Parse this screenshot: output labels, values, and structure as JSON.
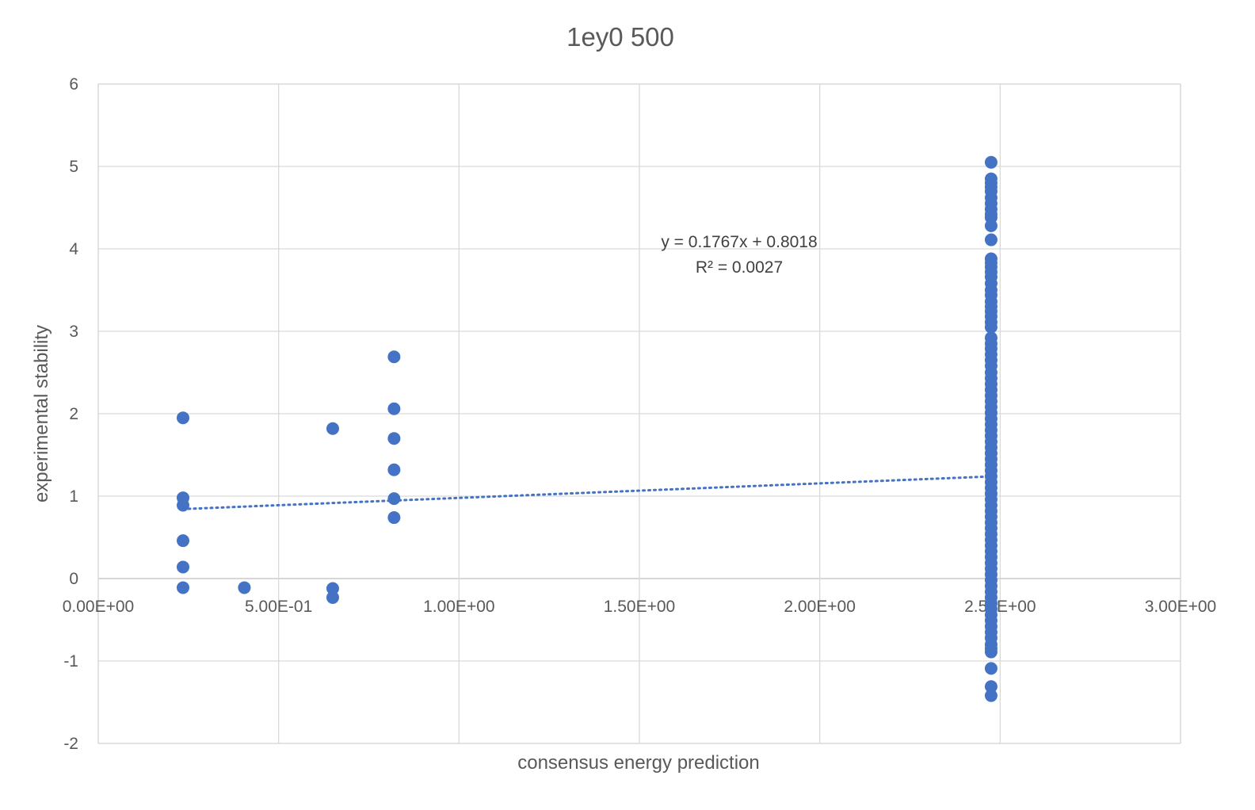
{
  "chart_data": {
    "type": "scatter",
    "title": "1ey0 500",
    "xlabel": "consensus energy prediction",
    "ylabel": "experimental stability",
    "xlim": [
      0,
      3
    ],
    "ylim": [
      -2,
      6
    ],
    "x_ticks": [
      "0.00E+00",
      "5.00E-01",
      "1.00E+00",
      "1.50E+00",
      "2.00E+00",
      "2.50E+00",
      "3.00E+00"
    ],
    "y_ticks": [
      "-2",
      "-1",
      "0",
      "1",
      "2",
      "3",
      "4",
      "5",
      "6"
    ],
    "grid": true,
    "legend": "none",
    "color": "#4472c4",
    "series": [
      {
        "points": [
          [
            0.235,
            1.95
          ],
          [
            0.235,
            0.98
          ],
          [
            0.235,
            0.89
          ],
          [
            0.235,
            0.46
          ],
          [
            0.235,
            0.14
          ],
          [
            0.235,
            -0.11
          ],
          [
            0.405,
            -0.11
          ],
          [
            0.65,
            1.82
          ],
          [
            0.65,
            -0.12
          ],
          [
            0.65,
            -0.23
          ],
          [
            0.82,
            2.69
          ],
          [
            0.82,
            2.06
          ],
          [
            0.82,
            1.7
          ],
          [
            0.82,
            1.32
          ],
          [
            0.82,
            0.97
          ],
          [
            0.82,
            0.74
          ],
          [
            2.475,
            5.05
          ],
          [
            2.475,
            4.85
          ],
          [
            2.475,
            4.8
          ],
          [
            2.475,
            4.75
          ],
          [
            2.475,
            4.7
          ],
          [
            2.475,
            4.62
          ],
          [
            2.475,
            4.55
          ],
          [
            2.475,
            4.48
          ],
          [
            2.475,
            4.42
          ],
          [
            2.475,
            4.38
          ],
          [
            2.475,
            4.28
          ],
          [
            2.475,
            4.11
          ],
          [
            2.475,
            3.88
          ],
          [
            2.475,
            3.83
          ],
          [
            2.475,
            3.78
          ],
          [
            2.475,
            3.72
          ],
          [
            2.475,
            3.66
          ],
          [
            2.475,
            3.58
          ],
          [
            2.475,
            3.5
          ],
          [
            2.475,
            3.44
          ],
          [
            2.475,
            3.36
          ],
          [
            2.475,
            3.3
          ],
          [
            2.475,
            3.24
          ],
          [
            2.475,
            3.18
          ],
          [
            2.475,
            3.11
          ],
          [
            2.475,
            3.05
          ],
          [
            2.475,
            2.92
          ],
          [
            2.475,
            2.85
          ],
          [
            2.475,
            2.79
          ],
          [
            2.475,
            2.72
          ],
          [
            2.475,
            2.65
          ],
          [
            2.475,
            2.58
          ],
          [
            2.475,
            2.5
          ],
          [
            2.475,
            2.43
          ],
          [
            2.475,
            2.36
          ],
          [
            2.475,
            2.29
          ],
          [
            2.475,
            2.22
          ],
          [
            2.475,
            2.15
          ],
          [
            2.475,
            2.08
          ],
          [
            2.475,
            2.01
          ],
          [
            2.475,
            1.94
          ],
          [
            2.475,
            1.87
          ],
          [
            2.475,
            1.8
          ],
          [
            2.475,
            1.73
          ],
          [
            2.475,
            1.66
          ],
          [
            2.475,
            1.59
          ],
          [
            2.475,
            1.52
          ],
          [
            2.475,
            1.45
          ],
          [
            2.475,
            1.38
          ],
          [
            2.475,
            1.31
          ],
          [
            2.475,
            1.24
          ],
          [
            2.475,
            1.17
          ],
          [
            2.475,
            1.1
          ],
          [
            2.475,
            1.03
          ],
          [
            2.475,
            0.96
          ],
          [
            2.475,
            0.89
          ],
          [
            2.475,
            0.82
          ],
          [
            2.475,
            0.75
          ],
          [
            2.475,
            0.68
          ],
          [
            2.475,
            0.61
          ],
          [
            2.475,
            0.54
          ],
          [
            2.475,
            0.47
          ],
          [
            2.475,
            0.4
          ],
          [
            2.475,
            0.33
          ],
          [
            2.475,
            0.26
          ],
          [
            2.475,
            0.19
          ],
          [
            2.475,
            0.12
          ],
          [
            2.475,
            0.05
          ],
          [
            2.475,
            -0.02
          ],
          [
            2.475,
            -0.09
          ],
          [
            2.475,
            -0.16
          ],
          [
            2.475,
            -0.23
          ],
          [
            2.475,
            -0.3
          ],
          [
            2.475,
            -0.37
          ],
          [
            2.475,
            -0.44
          ],
          [
            2.475,
            -0.51
          ],
          [
            2.475,
            -0.58
          ],
          [
            2.475,
            -0.65
          ],
          [
            2.475,
            -0.72
          ],
          [
            2.475,
            -0.8
          ],
          [
            2.475,
            -0.85
          ],
          [
            2.475,
            -0.89
          ],
          [
            2.475,
            -1.09
          ],
          [
            2.475,
            -1.31
          ],
          [
            2.475,
            -1.42
          ]
        ]
      }
    ],
    "trendline": {
      "type": "linear",
      "slope": 0.1767,
      "intercept": 0.8018,
      "x_range": [
        0.235,
        2.475
      ],
      "equation": "y = 0.1767x + 0.8018",
      "r_squared": "R² = 0.0027"
    }
  }
}
